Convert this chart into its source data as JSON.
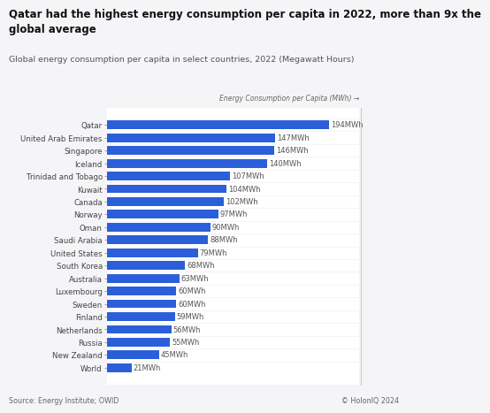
{
  "title": "Qatar had the highest energy consumption per capita in 2022, more than 9x the\nglobal average",
  "subtitle": "Global energy consumption per capita in select countries, 2022 (Megawatt Hours)",
  "axis_label": "Energy Consumption per Capita (MWh) →",
  "source": "Source: Energy Institute; OWID",
  "credit": "© HolonIQ 2024",
  "background_color": "#f5f5f8",
  "plot_bg_color": "#ffffff",
  "bar_color": "#2b5fd9",
  "countries": [
    "Qatar",
    "United Arab Emirates",
    "Singapore",
    "Iceland",
    "Trinidad and Tobago",
    "Kuwait",
    "Canada",
    "Norway",
    "Oman",
    "Saudi Arabia",
    "United States",
    "South Korea",
    "Australia",
    "Luxembourg",
    "Sweden",
    "Finland",
    "Netherlands",
    "Russia",
    "New Zealand",
    "World"
  ],
  "values": [
    194,
    147,
    146,
    140,
    107,
    104,
    102,
    97,
    90,
    88,
    79,
    68,
    63,
    60,
    60,
    59,
    56,
    55,
    45,
    21
  ],
  "labels": [
    "194MWh",
    "147MWh",
    "146MWh",
    "140MWh",
    "107MWh",
    "104MWh",
    "102MWh",
    "97MWh",
    "90MWh",
    "88MWh",
    "79MWh",
    "68MWh",
    "63MWh",
    "60MWh",
    "60MWh",
    "59MWh",
    "56MWh",
    "55MWh",
    "45MWh",
    "21MWh"
  ],
  "xlim": [
    0,
    220
  ],
  "title_fontsize": 8.5,
  "subtitle_fontsize": 6.8,
  "label_fontsize": 6.0,
  "tick_fontsize": 6.2,
  "source_fontsize": 5.8,
  "axis_label_fontsize": 5.5
}
